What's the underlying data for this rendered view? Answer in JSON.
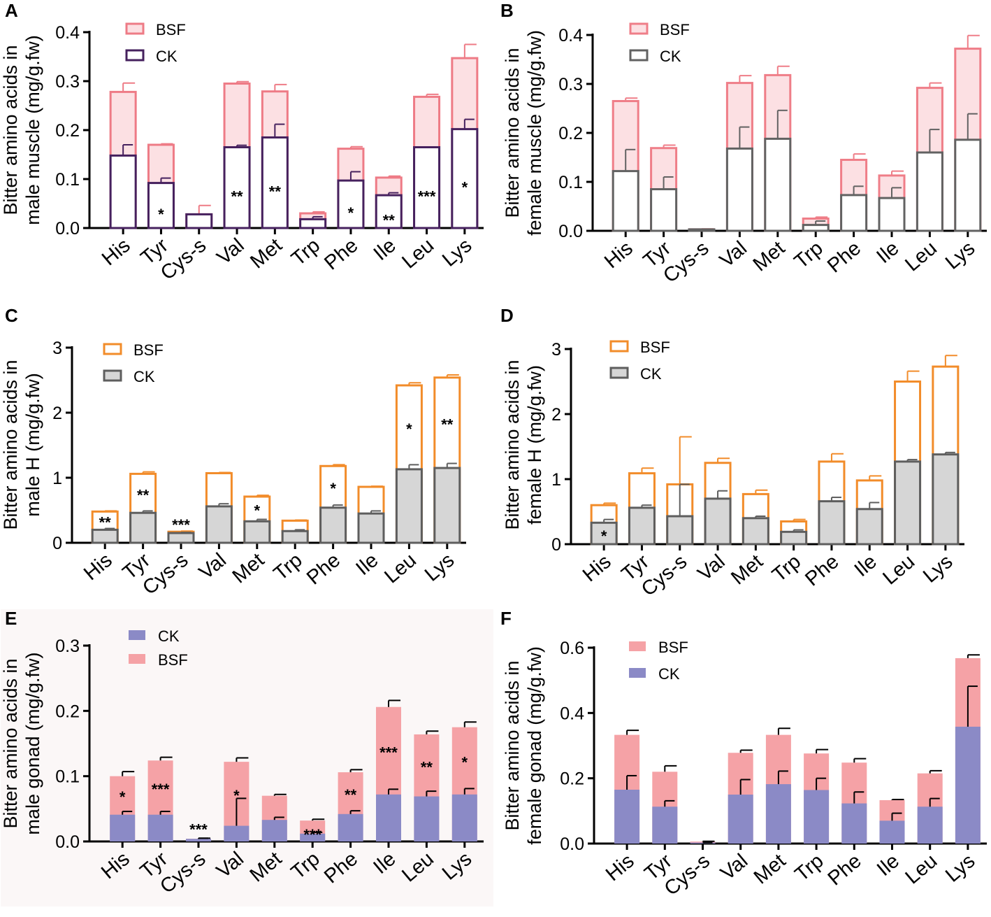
{
  "chart_data": [
    {
      "panel": "A",
      "type": "bar",
      "ylabel": [
        "Bitter amino acids in",
        "male muscle (mg/g.fw)"
      ],
      "ylim": [
        0,
        0.4
      ],
      "yticks": [
        "0.0",
        "0.1",
        "0.2",
        "0.3",
        "0.4"
      ],
      "categories": [
        "His",
        "Tyr",
        "Cys-s",
        "Val",
        "Met",
        "Trp",
        "Phe",
        "Ile",
        "Leu",
        "Lys"
      ],
      "legend": [
        "BSF",
        "CK"
      ],
      "series": [
        {
          "name": "BSF",
          "values": [
            0.278,
            0.17,
            0.028,
            0.295,
            0.279,
            0.03,
            0.162,
            0.103,
            0.268,
            0.347
          ],
          "errors": [
            0.018,
            0.002,
            0.018,
            0.004,
            0.014,
            0.003,
            0.004,
            0.003,
            0.005,
            0.028
          ]
        },
        {
          "name": "CK",
          "values": [
            0.148,
            0.092,
            0.028,
            0.165,
            0.185,
            0.018,
            0.097,
            0.067,
            0.165,
            0.202
          ],
          "errors": [
            0.022,
            0.01,
            0.0,
            0.004,
            0.027,
            0.005,
            0.018,
            0.005,
            0.0,
            0.02
          ]
        }
      ],
      "significance": [
        "",
        "*",
        "",
        "**",
        "**",
        "",
        "*",
        "**",
        "***",
        "*"
      ]
    },
    {
      "panel": "B",
      "type": "bar",
      "ylabel": [
        "Bitter amino acids in",
        "female muscle (mg/g.fw)"
      ],
      "ylim": [
        0,
        0.4
      ],
      "yticks": [
        "0.0",
        "0.1",
        "0.2",
        "0.3",
        "0.4"
      ],
      "categories": [
        "His",
        "Tyr",
        "Cys-s",
        "Val",
        "Met",
        "Trp",
        "Phe",
        "Ile",
        "Leu",
        "Lys"
      ],
      "legend": [
        "BSF",
        "CK"
      ],
      "series": [
        {
          "name": "BSF",
          "values": [
            0.265,
            0.169,
            0.003,
            0.302,
            0.318,
            0.025,
            0.145,
            0.113,
            0.292,
            0.372
          ],
          "errors": [
            0.006,
            0.006,
            0.001,
            0.015,
            0.018,
            0.003,
            0.012,
            0.009,
            0.01,
            0.027
          ]
        },
        {
          "name": "CK",
          "values": [
            0.122,
            0.085,
            0.003,
            0.168,
            0.188,
            0.012,
            0.073,
            0.067,
            0.16,
            0.186
          ],
          "errors": [
            0.044,
            0.025,
            0.0,
            0.044,
            0.058,
            0.008,
            0.018,
            0.021,
            0.047,
            0.053
          ]
        }
      ],
      "significance": [
        "",
        "",
        "",
        "",
        "",
        "",
        "",
        "",
        "",
        ""
      ]
    },
    {
      "panel": "C",
      "type": "bar",
      "ylabel": [
        "Bitter amino acids in",
        "male H (mg/g.fw)"
      ],
      "ylim": [
        0,
        3
      ],
      "yticks": [
        "0",
        "1",
        "2",
        "3"
      ],
      "categories": [
        "His",
        "Tyr",
        "Cys-s",
        "Val",
        "Met",
        "Trp",
        "Phe",
        "Ile",
        "Leu",
        "Lys"
      ],
      "legend": [
        "BSF",
        "CK"
      ],
      "series": [
        {
          "name": "BSF",
          "values": [
            0.48,
            1.06,
            0.17,
            1.07,
            0.71,
            0.34,
            1.18,
            0.86,
            2.42,
            2.54
          ],
          "errors": [
            0.01,
            0.03,
            0.01,
            0.01,
            0.02,
            0.01,
            0.02,
            0.01,
            0.04,
            0.04
          ]
        },
        {
          "name": "CK",
          "values": [
            0.2,
            0.46,
            0.15,
            0.56,
            0.33,
            0.18,
            0.54,
            0.45,
            1.13,
            1.15
          ],
          "errors": [
            0.02,
            0.03,
            0.01,
            0.04,
            0.03,
            0.02,
            0.04,
            0.04,
            0.07,
            0.07
          ]
        }
      ],
      "significance": [
        "**",
        "**",
        "***",
        "",
        "*",
        "",
        "*",
        "",
        "*",
        "**"
      ]
    },
    {
      "panel": "D",
      "type": "bar",
      "ylabel": [
        "Bitter amino acids in",
        "female H (mg/g.fw)"
      ],
      "ylim": [
        0,
        3
      ],
      "yticks": [
        "0",
        "1",
        "2",
        "3"
      ],
      "categories": [
        "His",
        "Tyr",
        "Cys-s",
        "Val",
        "Met",
        "Trp",
        "Phe",
        "Ile",
        "Leu",
        "Lys"
      ],
      "legend": [
        "BSF",
        "CK"
      ],
      "series": [
        {
          "name": "BSF",
          "values": [
            0.6,
            1.09,
            0.92,
            1.25,
            0.77,
            0.35,
            1.27,
            0.98,
            2.5,
            2.73
          ],
          "errors": [
            0.03,
            0.08,
            0.73,
            0.07,
            0.06,
            0.03,
            0.12,
            0.07,
            0.16,
            0.17
          ]
        },
        {
          "name": "CK",
          "values": [
            0.33,
            0.56,
            0.43,
            0.7,
            0.4,
            0.19,
            0.66,
            0.54,
            1.27,
            1.38
          ],
          "errors": [
            0.05,
            0.04,
            0.49,
            0.12,
            0.03,
            0.03,
            0.06,
            0.1,
            0.03,
            0.03
          ]
        }
      ],
      "significance": [
        "*",
        "",
        "",
        "",
        "",
        "",
        "",
        "",
        "",
        ""
      ]
    },
    {
      "panel": "E",
      "type": "bar",
      "ylabel": [
        "Bitter amino acids in",
        "male gonad (mg/g.fw)"
      ],
      "ylim": [
        0,
        0.3
      ],
      "yticks": [
        "0.0",
        "0.1",
        "0.2",
        "0.3"
      ],
      "categories": [
        "His",
        "Tyr",
        "Cys-s",
        "Val",
        "Met",
        "Trp",
        "Phe",
        "Ile",
        "Leu",
        "Lys"
      ],
      "legend": [
        "CK",
        "BSF"
      ],
      "series": [
        {
          "name": "BSF",
          "values": [
            0.1,
            0.124,
            0.004,
            0.122,
            0.07,
            0.032,
            0.106,
            0.206,
            0.164,
            0.175
          ],
          "errors": [
            0.007,
            0.005,
            0.001,
            0.006,
            0.002,
            0.002,
            0.004,
            0.01,
            0.005,
            0.008
          ]
        },
        {
          "name": "CK",
          "values": [
            0.041,
            0.041,
            0.004,
            0.024,
            0.033,
            0.012,
            0.042,
            0.072,
            0.069,
            0.072
          ],
          "errors": [
            0.005,
            0.005,
            0.001,
            0.042,
            0.004,
            0.002,
            0.005,
            0.008,
            0.008,
            0.009
          ]
        }
      ],
      "significance": [
        "*",
        "***",
        "***",
        "*",
        "",
        "***",
        "**",
        "***",
        "**",
        "*"
      ]
    },
    {
      "panel": "F",
      "type": "bar",
      "ylabel": [
        "Bitter amino acids in",
        "female gonad (mg/g.fw)"
      ],
      "ylim": [
        0,
        0.6
      ],
      "yticks": [
        "0.0",
        "0.2",
        "0.4",
        "0.6"
      ],
      "categories": [
        "His",
        "Tyr",
        "Cys-s",
        "Val",
        "Met",
        "Trp",
        "Phe",
        "Ile",
        "Leu",
        "Lys"
      ],
      "legend": [
        "BSF",
        "CK"
      ],
      "series": [
        {
          "name": "BSF",
          "values": [
            0.333,
            0.22,
            0.006,
            0.278,
            0.333,
            0.276,
            0.248,
            0.133,
            0.215,
            0.568
          ],
          "errors": [
            0.014,
            0.018,
            0.001,
            0.008,
            0.02,
            0.012,
            0.012,
            0.002,
            0.008,
            0.01
          ]
        },
        {
          "name": "CK",
          "values": [
            0.165,
            0.113,
            0.003,
            0.15,
            0.182,
            0.164,
            0.123,
            0.07,
            0.113,
            0.358
          ],
          "errors": [
            0.043,
            0.018,
            0.0,
            0.046,
            0.04,
            0.036,
            0.035,
            0.023,
            0.025,
            0.124
          ]
        }
      ],
      "significance": [
        "",
        "",
        "",
        "",
        "",
        "",
        "",
        "",
        "",
        ""
      ]
    }
  ],
  "colors": {
    "A_bsf_stroke": "#ee7b86",
    "A_bsf_fill": "#fce0e3",
    "A_ck_stroke": "#46215e",
    "A_ck_fill": "#ffffff",
    "B_bsf_stroke": "#ef7e88",
    "B_bsf_fill": "#fce0e3",
    "B_ck_stroke": "#626262",
    "B_ck_fill": "#ffffff",
    "C_bsf_stroke": "#f28c2a",
    "C_bsf_fill": "#ffffff",
    "C_ck_stroke": "#5e5e5e",
    "C_ck_fill": "#d6d6d6",
    "D_bsf_stroke": "#f28c2a",
    "D_bsf_fill": "#ffffff",
    "D_ck_stroke": "#5e5e5e",
    "D_ck_fill": "#d6d6d6",
    "E_bsf_fill": "#f5a2a6",
    "E_ck_fill": "#8b8ac6",
    "E_bg": "#fbf7f7",
    "F_bsf_fill": "#f5a2a6",
    "F_ck_fill": "#8b8ac6"
  }
}
